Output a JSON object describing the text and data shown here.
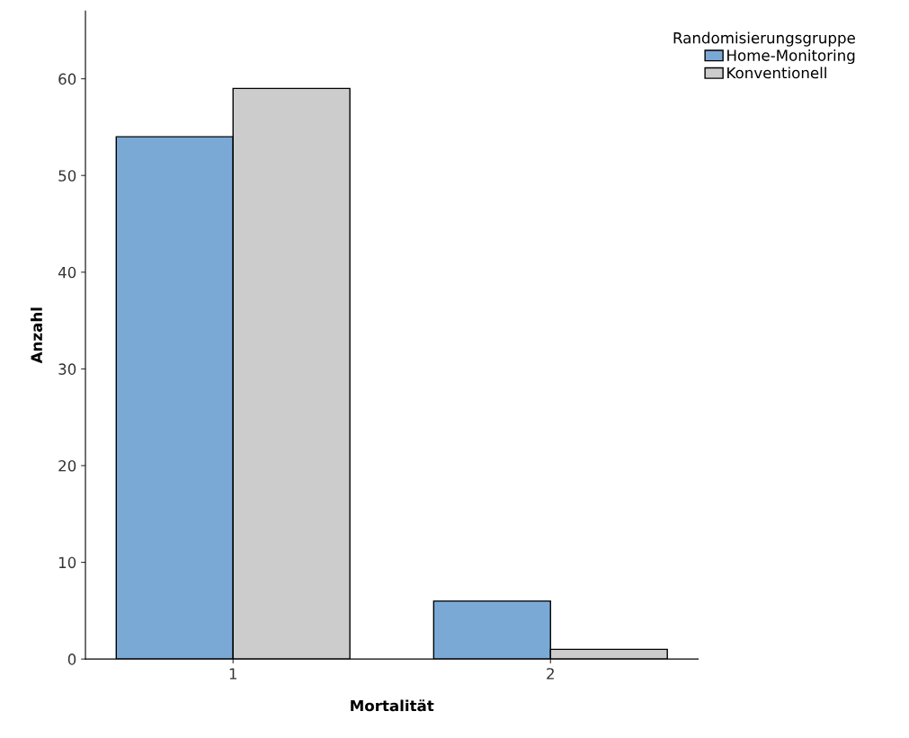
{
  "chart_data": {
    "type": "bar",
    "xlabel": "Mortalität",
    "ylabel": "Anzahl",
    "legend_title": "Randomisierungsgruppe",
    "categories": [
      "1",
      "2"
    ],
    "series": [
      {
        "name": "Home-Monitoring",
        "color": "#7aa9d6",
        "values": [
          54,
          6
        ]
      },
      {
        "name": "Konventionell",
        "color": "#cccccc",
        "values": [
          59,
          1
        ]
      }
    ],
    "ylim": [
      0,
      67
    ],
    "yticks": [
      0,
      10,
      20,
      30,
      40,
      50,
      60
    ],
    "grid": false,
    "legend": "top right"
  }
}
